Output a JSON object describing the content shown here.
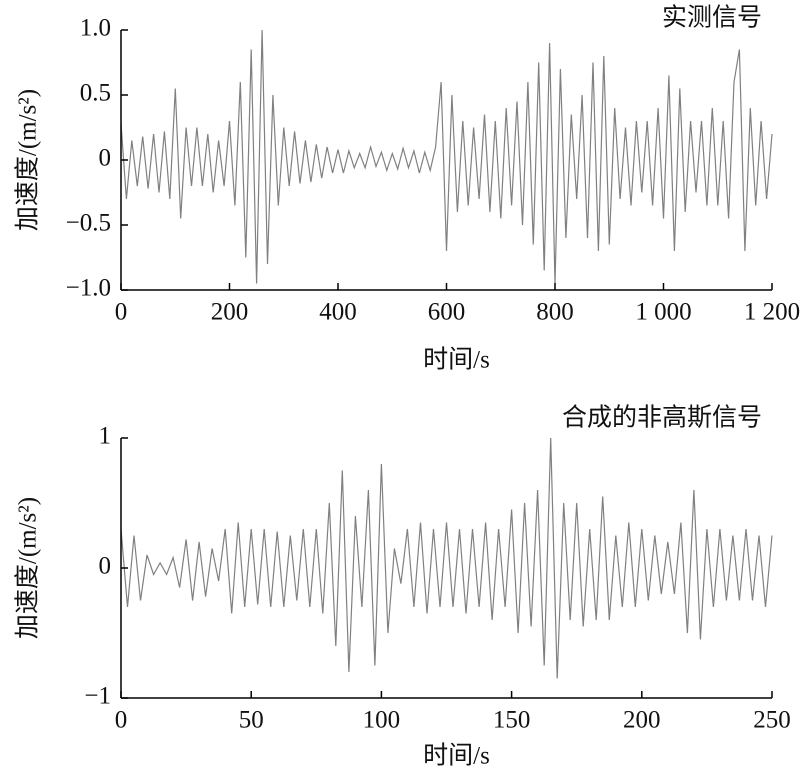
{
  "chart_data": [
    {
      "type": "line",
      "title": "实测信号",
      "xlabel": "时间/s",
      "ylabel": "加速度/(m/s²)",
      "x": [
        0,
        10,
        20,
        30,
        40,
        50,
        60,
        70,
        80,
        90,
        100,
        110,
        120,
        130,
        140,
        150,
        160,
        170,
        180,
        190,
        200,
        210,
        220,
        230,
        240,
        250,
        260,
        270,
        280,
        290,
        300,
        310,
        320,
        330,
        340,
        350,
        360,
        370,
        380,
        390,
        400,
        410,
        420,
        430,
        440,
        450,
        460,
        470,
        480,
        490,
        500,
        510,
        520,
        530,
        540,
        550,
        560,
        570,
        580,
        590,
        600,
        610,
        620,
        630,
        640,
        650,
        660,
        670,
        680,
        690,
        700,
        710,
        720,
        730,
        740,
        750,
        760,
        770,
        780,
        790,
        800,
        810,
        820,
        830,
        840,
        850,
        860,
        870,
        880,
        890,
        900,
        910,
        920,
        930,
        940,
        950,
        960,
        970,
        980,
        990,
        1000,
        1010,
        1020,
        1030,
        1040,
        1050,
        1060,
        1070,
        1080,
        1090,
        1100,
        1110,
        1120,
        1130,
        1140,
        1150,
        1160,
        1170,
        1180,
        1190,
        1200
      ],
      "series": [
        {
          "color": "#808080",
          "values": [
            0.28,
            -0.3,
            0.15,
            -0.2,
            0.18,
            -0.22,
            0.2,
            -0.25,
            0.22,
            -0.3,
            0.55,
            -0.45,
            0.25,
            -0.2,
            0.25,
            -0.2,
            0.2,
            -0.25,
            0.15,
            -0.2,
            0.3,
            -0.35,
            0.6,
            -0.75,
            0.85,
            -0.95,
            1.0,
            -0.8,
            0.5,
            -0.35,
            0.25,
            -0.2,
            0.22,
            -0.18,
            0.15,
            -0.17,
            0.12,
            -0.14,
            0.1,
            -0.1,
            0.08,
            -0.1,
            0.07,
            -0.06,
            0.05,
            -0.06,
            0.1,
            -0.05,
            0.06,
            -0.08,
            0.05,
            -0.07,
            0.09,
            -0.06,
            0.07,
            -0.1,
            0.06,
            -0.08,
            0.1,
            0.6,
            -0.7,
            0.5,
            -0.4,
            0.3,
            -0.35,
            0.25,
            -0.3,
            0.35,
            -0.4,
            0.3,
            -0.45,
            0.4,
            -0.35,
            0.45,
            -0.5,
            0.6,
            -0.65,
            0.75,
            -0.85,
            0.9,
            -0.95,
            0.7,
            -0.6,
            0.35,
            -0.3,
            0.5,
            -0.6,
            0.75,
            -0.7,
            0.8,
            -0.65,
            0.4,
            -0.3,
            0.25,
            -0.35,
            0.3,
            -0.25,
            0.3,
            -0.35,
            0.4,
            -0.45,
            0.65,
            -0.7,
            0.55,
            -0.4,
            0.3,
            -0.25,
            0.3,
            -0.35,
            0.4,
            -0.35,
            0.3,
            -0.45,
            0.6,
            0.85,
            -0.7,
            0.4,
            -0.35,
            0.3,
            -0.3,
            0.2
          ]
        }
      ],
      "xlim": [
        0,
        1200
      ],
      "ylim": [
        -1,
        1
      ],
      "xticks": [
        0,
        200,
        400,
        600,
        800,
        {
          "value": 1000,
          "label": "1 000"
        },
        {
          "value": 1200,
          "label": "1 200"
        }
      ],
      "yticks": [
        {
          "value": 1,
          "label": "1.0"
        },
        {
          "value": 0.5,
          "label": "0.5"
        },
        0,
        {
          "value": -0.5,
          "label": "−0.5"
        },
        {
          "value": -1,
          "label": "−1.0"
        }
      ]
    },
    {
      "type": "line",
      "title": "合成的非高斯信号",
      "xlabel": "时间/s",
      "ylabel": "加速度/(m/s²)",
      "x": [
        0,
        2.5,
        5,
        7.5,
        10,
        12.5,
        15,
        17.5,
        20,
        22.5,
        25,
        27.5,
        30,
        32.5,
        35,
        37.5,
        40,
        42.5,
        45,
        47.5,
        50,
        52.5,
        55,
        57.5,
        60,
        62.5,
        65,
        67.5,
        70,
        72.5,
        75,
        77.5,
        80,
        82.5,
        85,
        87.5,
        90,
        92.5,
        95,
        97.5,
        100,
        102.5,
        105,
        107.5,
        110,
        112.5,
        115,
        117.5,
        120,
        122.5,
        125,
        127.5,
        130,
        132.5,
        135,
        137.5,
        140,
        142.5,
        145,
        147.5,
        150,
        152.5,
        155,
        157.5,
        160,
        162.5,
        165,
        167.5,
        170,
        172.5,
        175,
        177.5,
        180,
        182.5,
        185,
        187.5,
        190,
        192.5,
        195,
        197.5,
        200,
        202.5,
        205,
        207.5,
        210,
        212.5,
        215,
        217.5,
        220,
        222.5,
        225,
        227.5,
        230,
        232.5,
        235,
        237.5,
        240,
        242.5,
        245,
        247.5,
        250
      ],
      "series": [
        {
          "color": "#808080",
          "values": [
            0.3,
            -0.3,
            0.25,
            -0.25,
            0.1,
            -0.05,
            0.04,
            -0.05,
            0.08,
            -0.15,
            0.22,
            -0.25,
            0.2,
            -0.22,
            0.15,
            -0.1,
            0.3,
            -0.35,
            0.35,
            -0.3,
            0.3,
            -0.28,
            0.3,
            -0.3,
            0.28,
            -0.3,
            0.25,
            -0.25,
            0.3,
            -0.3,
            0.3,
            -0.35,
            0.5,
            -0.6,
            0.75,
            -0.8,
            0.4,
            -0.3,
            0.6,
            -0.75,
            0.8,
            -0.5,
            0.15,
            -0.12,
            0.3,
            -0.3,
            0.35,
            -0.35,
            0.3,
            -0.3,
            0.35,
            -0.3,
            0.3,
            -0.35,
            0.3,
            -0.3,
            0.35,
            -0.4,
            0.3,
            -0.3,
            0.45,
            -0.5,
            0.5,
            -0.45,
            0.6,
            -0.75,
            1.0,
            -0.85,
            0.5,
            -0.4,
            0.5,
            -0.45,
            0.3,
            -0.4,
            0.55,
            -0.4,
            0.25,
            -0.3,
            0.35,
            -0.3,
            0.3,
            -0.25,
            0.25,
            -0.2,
            0.2,
            -0.2,
            0.35,
            -0.5,
            0.6,
            -0.55,
            0.3,
            -0.3,
            0.3,
            -0.25,
            0.25,
            -0.25,
            0.3,
            -0.25,
            0.25,
            -0.3,
            0.25
          ]
        }
      ],
      "xlim": [
        0,
        250
      ],
      "ylim": [
        -1,
        1
      ],
      "xticks": [
        0,
        50,
        100,
        150,
        200,
        250
      ],
      "yticks": [
        1,
        0,
        {
          "value": -1,
          "label": "−1"
        }
      ]
    }
  ]
}
